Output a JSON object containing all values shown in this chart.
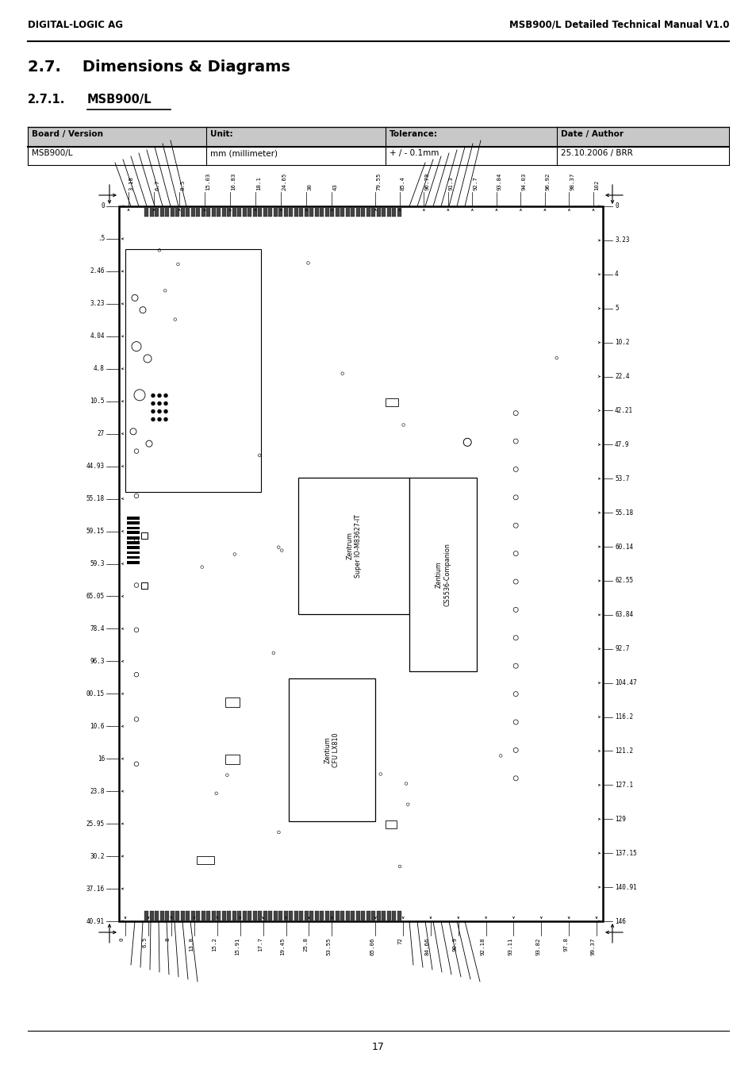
{
  "page_width": 9.54,
  "page_height": 13.51,
  "bg_color": "#ffffff",
  "header_left": "DIGITAL-LOGIC AG",
  "header_right": "MSB900/L Detailed Technical Manual V1.0",
  "section_title": "2.7.    Dimensions & Diagrams",
  "subsection_num": "2.7.1.",
  "subsection_underline": "MSB900/L",
  "table_headers": [
    "Board / Version",
    "Unit:",
    "Tolerance:",
    "Date / Author"
  ],
  "table_row": [
    "MSB900/L",
    "mm (millimeter)",
    "+ / - 0.1mm",
    "25.10.2006 / BRR"
  ],
  "page_number": "17",
  "top_dim_labels_left": [
    "3.18",
    "6.7",
    "8.5",
    "15.03",
    "16.83",
    "18.1",
    "24.65",
    "30",
    "43"
  ],
  "top_dim_labels_right": [
    "79.55",
    "85.4",
    "96.79",
    "91.3",
    "92.7",
    "93.84",
    "94.03",
    "96.92",
    "98.37",
    "102"
  ],
  "left_dim_labels": [
    "0",
    ".5",
    "2.46",
    "3.23",
    "4.04",
    "4.8",
    "10.5",
    "27",
    "44.93",
    "55.18",
    "59.15",
    "59.3",
    "65.05",
    "78.4",
    "96.3",
    "00.15",
    "10.6",
    "16",
    "23.8",
    "25.95",
    "30.2",
    "37.16",
    "40.91"
  ],
  "right_dim_labels": [
    "0",
    "3.23",
    "4",
    "5",
    "10.2",
    "22.4",
    "42.21",
    "47.9",
    "53.7",
    "55.18",
    "60.14",
    "62.55",
    "63.84",
    "92.7",
    "104.47",
    "116.2",
    "121.2",
    "127.1",
    "129",
    "137.15",
    "140.91",
    "146"
  ],
  "bottom_dim_labels_left": [
    "0",
    "6.5",
    "8",
    "13.8",
    "15.2",
    "15.91",
    "17.7",
    "19.45",
    "25.8",
    "53.55"
  ],
  "bottom_dim_labels_right": [
    "65.06",
    "72",
    "84.66",
    "90.9",
    "92.18",
    "93.11",
    "93.82",
    "97.8",
    "99.37"
  ],
  "chip_label_superio": "Zentrum\nSuper IO-M83627-IT",
  "chip_label_cpu": "Zentium\nCFU LX810",
  "chip_label_companion": "Zentium\nCS5536-Companion",
  "table_header_bg": "#c8c8c8",
  "table_border_color": "#000000",
  "dim_line_color": "#000000"
}
